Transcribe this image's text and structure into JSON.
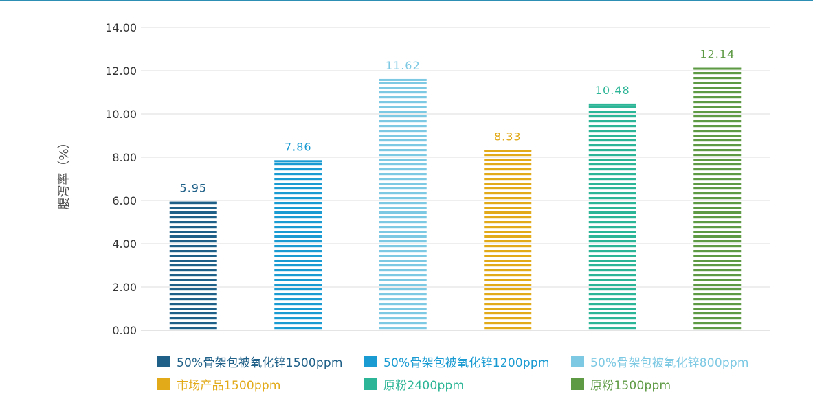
{
  "chart_data": {
    "type": "bar",
    "ylabel": "腹泻率（%）",
    "ylim": [
      0,
      14
    ],
    "ytick_step": 2,
    "ytick_labels": [
      "0.00",
      "2.00",
      "4.00",
      "6.00",
      "8.00",
      "10.00",
      "12.00",
      "14.00"
    ],
    "grid": true,
    "legend_position": "bottom",
    "bar_pattern": "horizontal-stripes",
    "categories": [
      "50%骨架包被氧化锌1500ppm",
      "50%骨架包被氧化锌1200ppm",
      "50%骨架包被氧化锌800ppm",
      "市场产品1500ppm",
      "原粉2400ppm",
      "原粉1500ppm"
    ],
    "values": [
      5.95,
      7.86,
      11.62,
      8.33,
      10.48,
      12.14
    ],
    "value_labels": [
      "5.95",
      "7.86",
      "11.62",
      "8.33",
      "10.48",
      "12.14"
    ],
    "colors": [
      "#1f6088",
      "#1a9bd2",
      "#7dc9e4",
      "#e2aa18",
      "#2cb596",
      "#5e9a44"
    ]
  }
}
